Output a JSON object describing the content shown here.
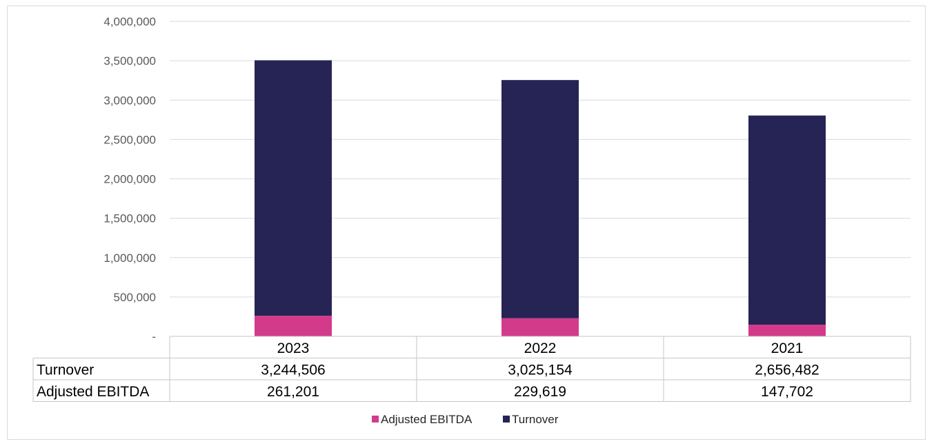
{
  "chart_data": {
    "type": "bar",
    "stacked": true,
    "categories": [
      "2023",
      "2022",
      "2021"
    ],
    "series": [
      {
        "name": "Adjusted EBITDA",
        "values": [
          261201,
          229619,
          147702
        ]
      },
      {
        "name": "Turnover",
        "values": [
          3244506,
          3025154,
          2656482
        ]
      }
    ],
    "ylim": [
      0,
      4000000
    ],
    "yticks": [
      0,
      500000,
      1000000,
      1500000,
      2000000,
      2500000,
      3000000,
      3500000,
      4000000
    ],
    "ytick_labels": [
      "-",
      "500,000",
      "1,000,000",
      "1,500,000",
      "2,000,000",
      "2,500,000",
      "3,000,000",
      "3,500,000",
      "4,000,000"
    ],
    "grid": true,
    "legend_position": "bottom",
    "data_table": {
      "header": [
        "2023",
        "2022",
        "2021"
      ],
      "rows": [
        {
          "label": "Turnover",
          "cells": [
            "3,244,506",
            "3,025,154",
            "2,656,482"
          ]
        },
        {
          "label": "Adjusted EBITDA",
          "cells": [
            "261,201",
            "229,619",
            "147,702"
          ]
        }
      ]
    },
    "legend": [
      "Adjusted EBITDA",
      "Turnover"
    ],
    "colors": {
      "Adjusted EBITDA": "#d43a8a",
      "Turnover": "#262355"
    }
  }
}
